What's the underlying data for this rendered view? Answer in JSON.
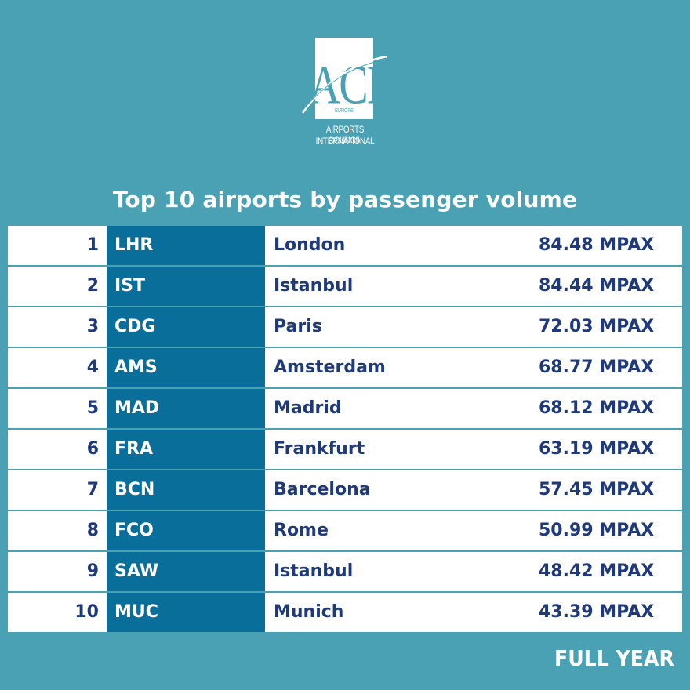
{
  "logo": {
    "mark": "ACI",
    "region": "EUROPE",
    "org_line1": "AIRPORTS COUNCIL",
    "org_line2": "INTERNATIONAL"
  },
  "title": "Top 10 airports by passenger volume",
  "rows": [
    {
      "rank": "1",
      "code": "LHR",
      "city": "London",
      "pax": "84.48 MPAX"
    },
    {
      "rank": "2",
      "code": "IST",
      "city": "Istanbul",
      "pax": "84.44 MPAX"
    },
    {
      "rank": "3",
      "code": "CDG",
      "city": "Paris",
      "pax": "72.03 MPAX"
    },
    {
      "rank": "4",
      "code": "AMS",
      "city": "Amsterdam",
      "pax": "68.77 MPAX"
    },
    {
      "rank": "5",
      "code": "MAD",
      "city": "Madrid",
      "pax": "68.12 MPAX"
    },
    {
      "rank": "6",
      "code": "FRA",
      "city": "Frankfurt",
      "pax": "63.19 MPAX"
    },
    {
      "rank": "7",
      "code": "BCN",
      "city": "Barcelona",
      "pax": "57.45 MPAX"
    },
    {
      "rank": "8",
      "code": "FCO",
      "city": "Rome",
      "pax": "50.99 MPAX"
    },
    {
      "rank": "9",
      "code": "SAW",
      "city": "Istanbul",
      "pax": "48.42 MPAX"
    },
    {
      "rank": "10",
      "code": "MUC",
      "city": "Munich",
      "pax": "43.39 MPAX"
    }
  ],
  "footer": "FULL YEAR",
  "colors": {
    "background": "#4aa1b3",
    "code_cell": "#0a6e9b",
    "text_dark": "#1f3a7a",
    "white": "#ffffff"
  }
}
